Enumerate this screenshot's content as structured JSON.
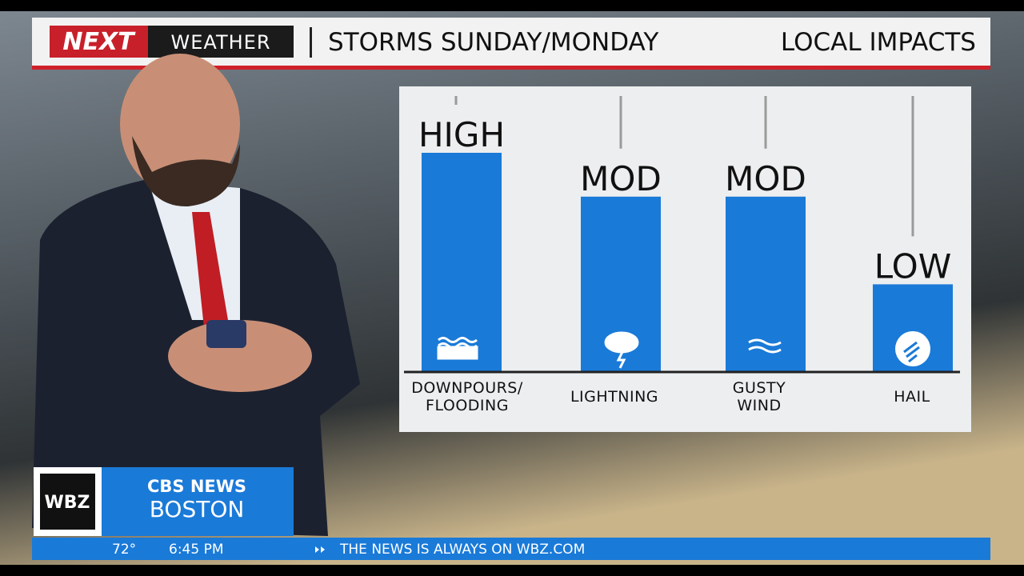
{
  "header": {
    "logo_next": "NEXT",
    "logo_weather": "WEATHER",
    "title": "STORMS SUNDAY/MONDAY",
    "section": "LOCAL IMPACTS"
  },
  "chart_data": {
    "type": "bar",
    "categories": [
      "DOWNPOURS/\nFLOODING",
      "LIGHTNING",
      "GUSTY\nWIND",
      "HAIL"
    ],
    "values": [
      5,
      4,
      4,
      2
    ],
    "value_labels": [
      "HIGH",
      "MOD",
      "MOD",
      "LOW"
    ],
    "ylim": [
      0,
      5
    ],
    "color": "#1a7ad8"
  },
  "footer": {
    "station": "WBZ",
    "network": "CBS NEWS",
    "city": "BOSTON",
    "temperature": "72°",
    "time": "6:45 PM",
    "ticker": "THE NEWS IS ALWAYS ON WBZ.COM"
  }
}
